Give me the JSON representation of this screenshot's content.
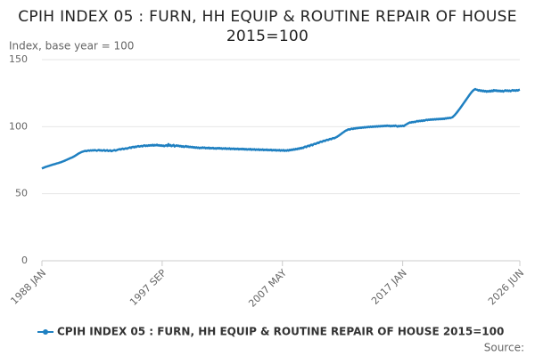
{
  "chart_data": {
    "type": "line",
    "title": "CPIH INDEX 05 : FURN, HH EQUIP & ROUTINE REPAIR OF HOUSE 2015=100",
    "y_label": "Index, base year = 100",
    "source": "Source:",
    "categories": [
      "1988 JAN",
      null,
      null,
      null,
      null,
      null,
      null,
      null,
      null,
      null,
      null,
      null,
      null,
      null,
      null,
      null,
      null,
      null,
      null,
      null,
      null,
      null,
      null,
      null,
      null,
      null,
      null,
      null,
      null,
      null,
      null,
      null,
      null,
      null,
      null,
      null,
      null,
      null,
      null,
      null,
      null,
      null,
      null,
      null,
      null,
      null,
      null,
      null,
      null,
      null,
      null,
      null,
      null,
      null,
      null,
      null,
      null,
      null,
      null,
      null,
      null,
      null,
      null,
      null,
      null,
      null,
      null,
      null,
      null,
      null,
      null,
      null,
      null,
      null,
      null,
      null,
      null,
      null,
      null,
      null,
      null,
      null,
      null,
      null,
      null,
      null,
      null,
      null,
      null,
      null,
      null,
      null,
      null,
      null,
      null,
      null,
      null,
      null,
      null,
      null,
      null,
      null,
      null,
      null,
      null,
      null,
      null,
      null,
      null,
      null,
      null,
      null,
      null,
      null,
      null,
      null,
      "1997 SEP",
      null,
      null,
      null,
      null,
      null,
      null,
      null,
      null,
      null,
      null,
      null,
      null,
      null,
      null,
      null,
      null,
      null,
      null,
      null,
      null,
      null,
      null,
      null,
      null,
      null,
      null,
      null,
      null,
      null,
      null,
      null,
      null,
      null,
      null,
      null,
      null,
      null,
      null,
      null,
      null,
      null,
      null,
      null,
      null,
      null,
      null,
      null,
      null,
      null,
      null,
      null,
      null,
      null,
      null,
      null,
      null,
      null,
      null,
      null,
      null,
      null,
      null,
      null,
      null,
      null,
      null,
      null,
      null,
      null,
      null,
      null,
      null,
      null,
      null,
      null,
      null,
      null,
      null,
      null,
      null,
      null,
      null,
      null,
      null,
      null,
      null,
      null,
      null,
      null,
      null,
      null,
      null,
      null,
      null,
      null,
      null,
      null,
      null,
      null,
      null,
      null,
      null,
      null,
      null,
      null,
      null,
      null,
      null,
      null,
      null,
      null,
      null,
      null,
      null,
      null,
      "2007 MAY",
      null,
      null,
      null,
      null,
      null,
      null,
      null,
      null,
      null,
      null,
      null,
      null,
      null,
      null,
      null,
      null,
      null,
      null,
      null,
      null,
      null,
      null,
      null,
      null,
      null,
      null,
      null,
      null,
      null,
      null,
      null,
      null,
      null,
      null,
      null,
      null,
      null,
      null,
      null,
      null,
      null,
      null,
      null,
      null,
      null,
      null,
      null,
      null,
      null,
      null,
      null,
      null,
      null,
      null,
      null,
      null,
      null,
      null,
      null,
      null,
      null,
      null,
      null,
      null,
      null,
      null,
      null,
      null,
      null,
      null,
      null,
      null,
      null,
      null,
      null,
      null,
      null,
      null,
      null,
      null,
      null,
      null,
      null,
      null,
      null,
      null,
      null,
      null,
      null,
      null,
      null,
      null,
      null,
      null,
      null,
      null,
      null,
      null,
      null,
      null,
      null,
      null,
      null,
      null,
      null,
      null,
      null,
      null,
      null,
      null,
      null,
      null,
      null,
      null,
      null,
      "2017 JAN",
      null,
      null,
      null,
      null,
      null,
      null,
      null,
      null,
      null,
      null,
      null,
      null,
      null,
      null,
      null,
      null,
      null,
      null,
      null,
      null,
      null,
      null,
      null,
      null,
      null,
      null,
      null,
      null,
      null,
      null,
      null,
      null,
      null,
      null,
      null,
      null,
      null,
      null,
      null,
      null,
      null,
      null,
      null,
      null,
      null,
      null,
      null,
      null,
      null,
      null,
      null,
      null,
      null,
      null,
      null,
      null,
      null,
      null,
      null,
      null,
      null,
      null,
      null,
      null,
      null,
      null,
      null,
      null,
      null,
      null,
      null,
      null,
      null,
      null,
      null,
      null,
      null,
      null,
      null,
      null,
      null,
      null,
      null,
      null,
      null,
      null,
      null,
      null,
      null,
      null,
      null,
      null,
      null,
      null,
      null,
      null,
      null,
      null,
      null,
      null,
      null,
      null,
      null,
      null,
      null,
      null,
      null,
      null,
      null,
      null,
      null,
      null,
      "2026 JUN"
    ],
    "series": [
      {
        "name": "CPIH INDEX 05 : FURN, HH EQUIP & ROUTINE REPAIR OF HOUSE 2015=100",
        "color": "#1f80c1",
        "values": [
          68.8,
          69.2,
          69.5,
          69.8,
          70.1,
          70.3,
          70.6,
          70.8,
          71.1,
          71.3,
          71.6,
          71.8,
          72.0,
          72.2,
          72.5,
          72.7,
          72.9,
          73.2,
          73.4,
          73.7,
          74.0,
          74.3,
          74.6,
          75.0,
          75.3,
          75.7,
          76.0,
          76.4,
          76.7,
          77.0,
          77.4,
          77.8,
          78.3,
          78.8,
          79.3,
          79.8,
          80.2,
          80.6,
          81.0,
          81.3,
          81.5,
          81.8,
          82.0,
          81.7,
          82.1,
          82.3,
          82.0,
          82.4,
          82.1,
          82.5,
          82.2,
          82.6,
          82.3,
          82.0,
          82.4,
          82.7,
          82.2,
          82.5,
          82.0,
          82.3,
          82.6,
          81.9,
          82.2,
          82.5,
          81.8,
          82.1,
          82.4,
          81.7,
          82.0,
          82.3,
          82.6,
          82.1,
          82.4,
          82.8,
          83.0,
          83.3,
          82.9,
          83.4,
          83.7,
          83.2,
          83.6,
          83.9,
          83.5,
          84.0,
          84.2,
          84.6,
          84.1,
          84.8,
          85.0,
          84.5,
          85.2,
          84.8,
          85.3,
          85.6,
          85.1,
          85.4,
          85.7,
          85.2,
          85.9,
          86.1,
          85.5,
          86.0,
          85.6,
          86.2,
          85.8,
          86.3,
          85.9,
          86.5,
          85.8,
          86.4,
          86.0,
          86.6,
          85.9,
          86.3,
          85.7,
          86.2,
          85.6,
          86.0,
          85.4,
          85.9,
          86.2,
          85.5,
          87.0,
          85.8,
          86.3,
          85.4,
          85.9,
          86.4,
          85.2,
          85.7,
          86.1,
          85.6,
          85.9,
          85.3,
          85.7,
          85.0,
          85.5,
          84.8,
          85.2,
          85.6,
          84.9,
          85.3,
          84.7,
          85.1,
          84.6,
          85.0,
          84.4,
          84.8,
          84.2,
          84.7,
          84.1,
          84.5,
          83.9,
          84.4,
          84.0,
          84.6,
          84.1,
          84.5,
          83.8,
          84.3,
          83.9,
          84.4,
          83.7,
          84.2,
          83.8,
          84.3,
          83.6,
          84.0,
          83.5,
          84.1,
          83.7,
          84.2,
          83.6,
          84.0,
          83.4,
          83.9,
          83.5,
          84.0,
          83.3,
          83.8,
          83.4,
          83.9,
          83.2,
          83.7,
          83.3,
          83.8,
          83.1,
          83.6,
          83.2,
          83.7,
          83.0,
          83.5,
          83.1,
          83.6,
          83.0,
          83.5,
          82.9,
          83.4,
          82.8,
          83.3,
          82.9,
          83.4,
          82.7,
          83.2,
          82.8,
          83.3,
          82.6,
          83.1,
          82.7,
          83.2,
          82.5,
          83.0,
          82.6,
          83.1,
          82.4,
          82.9,
          82.5,
          83.0,
          82.3,
          82.8,
          82.4,
          82.9,
          82.2,
          82.7,
          82.3,
          82.8,
          82.1,
          82.6,
          82.2,
          82.7,
          82.0,
          82.5,
          82.1,
          82.6,
          81.9,
          82.4,
          82.0,
          82.6,
          82.1,
          82.8,
          82.4,
          83.0,
          82.6,
          83.3,
          82.8,
          83.5,
          83.1,
          83.8,
          83.4,
          84.1,
          83.7,
          84.4,
          84.0,
          84.8,
          85.2,
          84.7,
          85.5,
          85.9,
          85.4,
          86.2,
          86.6,
          86.1,
          86.9,
          87.3,
          87.0,
          87.6,
          88.1,
          87.8,
          88.5,
          88.9,
          88.6,
          89.2,
          89.6,
          89.3,
          89.9,
          90.3,
          90.0,
          90.5,
          90.9,
          90.6,
          91.2,
          91.5,
          91.3,
          91.8,
          92.2,
          92.6,
          93.1,
          93.7,
          94.2,
          94.8,
          95.4,
          95.9,
          96.5,
          97.0,
          97.3,
          97.8,
          98.1,
          97.8,
          98.3,
          98.6,
          98.2,
          98.8,
          98.5,
          99.0,
          98.7,
          99.2,
          98.9,
          99.4,
          99.0,
          99.5,
          99.2,
          99.7,
          99.3,
          99.8,
          99.5,
          100.0,
          99.6,
          100.1,
          99.7,
          100.2,
          99.8,
          100.3,
          99.9,
          100.4,
          100.0,
          100.5,
          100.1,
          100.6,
          100.2,
          100.7,
          100.3,
          100.8,
          100.4,
          100.9,
          100.5,
          100.8,
          100.2,
          100.7,
          100.3,
          100.8,
          100.4,
          100.9,
          100.5,
          100.0,
          100.6,
          100.2,
          100.7,
          100.3,
          100.8,
          100.4,
          101.0,
          101.5,
          101.9,
          102.4,
          102.8,
          103.2,
          103.0,
          103.5,
          103.2,
          103.7,
          103.4,
          103.9,
          104.3,
          103.9,
          104.4,
          104.1,
          104.6,
          104.2,
          104.8,
          104.4,
          104.9,
          105.2,
          104.8,
          105.3,
          105.0,
          105.5,
          105.1,
          105.6,
          105.2,
          105.7,
          105.3,
          105.8,
          105.4,
          105.9,
          105.5,
          106.0,
          105.6,
          106.1,
          105.7,
          106.3,
          106.0,
          106.5,
          106.2,
          106.7,
          106.4,
          106.8,
          107.0,
          107.8,
          108.5,
          109.4,
          110.3,
          111.3,
          112.3,
          113.3,
          114.4,
          115.5,
          116.6,
          117.7,
          118.8,
          119.9,
          121.0,
          122.1,
          123.2,
          124.3,
          125.3,
          126.2,
          127.0,
          127.6,
          128.1,
          127.6,
          127.5,
          126.9,
          127.3,
          126.6,
          127.1,
          126.4,
          126.9,
          126.2,
          126.7,
          126.0,
          126.6,
          126.1,
          126.8,
          126.2,
          127.0,
          126.4,
          127.3,
          126.7,
          127.2,
          126.5,
          127.0,
          126.4,
          126.9,
          126.3,
          126.8,
          126.1,
          126.7,
          127.2,
          126.6,
          127.1,
          126.5,
          127.0,
          126.4,
          126.9,
          127.3,
          126.8,
          127.2,
          126.7,
          127.3,
          126.9,
          127.4,
          127.6
        ]
      }
    ],
    "ylim": [
      0,
      150
    ],
    "yticks": [
      0,
      50,
      100,
      150
    ],
    "grid": true,
    "legend": "bottom"
  }
}
